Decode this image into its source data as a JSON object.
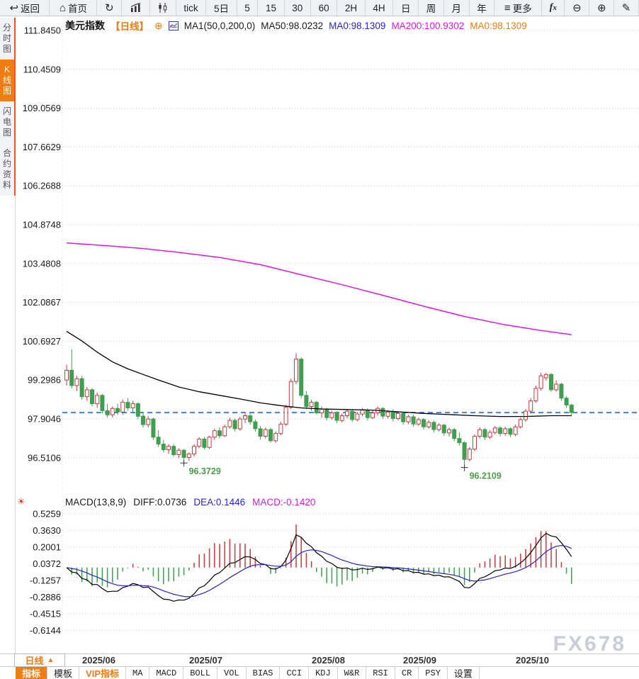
{
  "toolbar": {
    "items": [
      {
        "id": "back",
        "label": "返回",
        "icon": "back-arrow",
        "wide": true
      },
      {
        "id": "home",
        "label": "首页",
        "icon": "home",
        "wide": true
      },
      {
        "id": "refresh",
        "icon": "refresh"
      },
      {
        "id": "volume-bars",
        "icon": "bar-chart"
      },
      {
        "id": "candle-chart",
        "icon": "candlestick"
      },
      {
        "id": "tick",
        "label": "tick"
      },
      {
        "id": "5d",
        "label": "5日"
      },
      {
        "id": "m5",
        "label": "5"
      },
      {
        "id": "m15",
        "label": "15"
      },
      {
        "id": "m30",
        "label": "30"
      },
      {
        "id": "m60",
        "label": "60"
      },
      {
        "id": "h2",
        "label": "2H"
      },
      {
        "id": "h4",
        "label": "4H"
      },
      {
        "id": "day",
        "label": "日"
      },
      {
        "id": "week",
        "label": "周"
      },
      {
        "id": "month",
        "label": "月"
      },
      {
        "id": "year",
        "label": "年"
      },
      {
        "id": "more",
        "label": "更多",
        "icon": "menu",
        "wide": true
      },
      {
        "id": "fx",
        "icon": "fx"
      },
      {
        "id": "zoom-out",
        "icon": "zoom-out"
      },
      {
        "id": "zoom-in",
        "icon": "zoom-in"
      },
      {
        "id": "draw",
        "icon": "pencil"
      }
    ]
  },
  "sidebar": {
    "items": [
      {
        "id": "time-share",
        "label": "分时图",
        "active": false
      },
      {
        "id": "kline",
        "label": "K线图",
        "active": true
      },
      {
        "id": "lightning",
        "label": "闪电图",
        "active": false
      },
      {
        "id": "contract-info",
        "label": "合约资料",
        "active": false
      }
    ]
  },
  "chart_header": {
    "symbol": "美元指数",
    "period": "【日线】",
    "add_icon": "circle-plus",
    "legend_icon": "mini-chart",
    "ma1": "MA1(50,0,200,0)",
    "ma50": "MA50:98.0232",
    "ma0_blue": "MA0:98.1309",
    "ma200": "MA200:100.9302",
    "ma0_orange": "MA0:98.1309"
  },
  "macd_header": {
    "hot_icon": "sun",
    "title": "MACD(13,8,9)",
    "diff": "DIFF:0.0736",
    "dea": "DEA:0.1446",
    "macd": "MACD:-0.1420"
  },
  "bottom": {
    "period_button": "日线",
    "period_arrow": "▲",
    "tabs": [
      {
        "id": "indicator",
        "label": "指标",
        "style": "active"
      },
      {
        "id": "template",
        "label": "模板",
        "style": ""
      },
      {
        "id": "vip-indicator",
        "label": "VIP指标",
        "style": "vip"
      },
      {
        "id": "ma",
        "label": "MA",
        "style": "mono"
      },
      {
        "id": "macd",
        "label": "MACD",
        "style": "mono"
      },
      {
        "id": "boll",
        "label": "BOLL",
        "style": "mono"
      },
      {
        "id": "vol",
        "label": "VOL",
        "style": "mono"
      },
      {
        "id": "bias",
        "label": "BIAS",
        "style": "mono"
      },
      {
        "id": "cci",
        "label": "CCI",
        "style": "mono"
      },
      {
        "id": "kdj",
        "label": "KDJ",
        "style": "mono"
      },
      {
        "id": "wr",
        "label": "W&R",
        "style": "mono"
      },
      {
        "id": "rsi",
        "label": "RSI",
        "style": "mono"
      },
      {
        "id": "cr",
        "label": "CR",
        "style": "mono"
      },
      {
        "id": "psy",
        "label": "PSY",
        "style": "mono"
      },
      {
        "id": "settings",
        "label": "设置",
        "style": ""
      }
    ]
  },
  "watermark": "FX678",
  "colors": {
    "up": "#c43c3c",
    "down": "#3f9e4f",
    "ma50": "#000000",
    "ma200": "#e316e3",
    "price_line": "#1d6ee8",
    "accent": "#f07c14",
    "diff_line": "#000000",
    "dea_line": "#2824c8",
    "annotation": "#4a9e4a",
    "grid": "#cfd0d6"
  },
  "chart_data": {
    "type": "candlestick+macd",
    "title": "美元指数 日线 (US Dollar Index, Daily)",
    "candle_format": "[open,high,low,close]",
    "x_axis": {
      "labels": [
        "2025/06",
        "2025/07",
        "2025/08",
        "2025/09",
        "2025/10"
      ],
      "label_positions": [
        3,
        24,
        48,
        66,
        88
      ]
    },
    "y_axis_price": {
      "ticks": [
        111.845,
        110.4509,
        109.0569,
        107.6629,
        106.2688,
        104.8748,
        103.4808,
        102.0867,
        100.6927,
        99.2986,
        97.9046,
        96.5106
      ]
    },
    "y_axis_macd": {
      "ticks": [
        0.5259,
        0.363,
        0.2001,
        0.0372,
        -0.1257,
        -0.2886,
        -0.4515,
        -0.6144
      ]
    },
    "current_price": 98.1309,
    "macd_params": [
      13,
      8,
      9
    ],
    "annotations": [
      {
        "index": 23,
        "price": 96.3729,
        "label": "96.3729"
      },
      {
        "index": 78,
        "price": 96.2109,
        "label": "96.2109"
      }
    ],
    "ma200_points": [
      [
        0,
        104.22
      ],
      [
        8,
        104.12
      ],
      [
        15,
        104.02
      ],
      [
        22,
        103.88
      ],
      [
        30,
        103.7
      ],
      [
        38,
        103.44
      ],
      [
        46,
        103.08
      ],
      [
        54,
        102.72
      ],
      [
        62,
        102.34
      ],
      [
        70,
        101.95
      ],
      [
        78,
        101.58
      ],
      [
        86,
        101.28
      ],
      [
        93,
        101.08
      ],
      [
        99,
        100.93
      ]
    ],
    "ma50_points": [
      [
        0,
        101.05
      ],
      [
        3,
        100.7
      ],
      [
        6,
        100.3
      ],
      [
        9,
        99.95
      ],
      [
        12,
        99.7
      ],
      [
        15,
        99.5
      ],
      [
        18,
        99.3
      ],
      [
        22,
        99.05
      ],
      [
        26,
        98.88
      ],
      [
        30,
        98.75
      ],
      [
        34,
        98.62
      ],
      [
        38,
        98.48
      ],
      [
        42,
        98.38
      ],
      [
        46,
        98.3
      ],
      [
        50,
        98.26
      ],
      [
        55,
        98.24
      ],
      [
        60,
        98.22
      ],
      [
        65,
        98.16
      ],
      [
        70,
        98.1
      ],
      [
        75,
        98.06
      ],
      [
        80,
        98.02
      ],
      [
        85,
        97.99
      ],
      [
        90,
        97.99
      ],
      [
        95,
        98.02
      ],
      [
        99,
        98.02
      ]
    ],
    "candles": [
      [
        99.3,
        99.85,
        99.1,
        99.65
      ],
      [
        99.65,
        100.4,
        99.0,
        99.1
      ],
      [
        99.1,
        99.45,
        98.9,
        99.35
      ],
      [
        99.35,
        99.45,
        98.6,
        98.7
      ],
      [
        98.7,
        99.05,
        98.55,
        98.95
      ],
      [
        98.95,
        99.0,
        98.35,
        98.45
      ],
      [
        98.45,
        98.85,
        98.3,
        98.75
      ],
      [
        98.75,
        98.8,
        98.1,
        98.2
      ],
      [
        98.2,
        98.45,
        97.95,
        98.05
      ],
      [
        98.05,
        98.35,
        97.95,
        98.28
      ],
      [
        98.28,
        98.45,
        98.05,
        98.15
      ],
      [
        98.15,
        98.6,
        98.05,
        98.5
      ],
      [
        98.5,
        98.65,
        98.2,
        98.3
      ],
      [
        98.3,
        98.55,
        98.15,
        98.45
      ],
      [
        98.45,
        98.5,
        97.9,
        98.0
      ],
      [
        98.0,
        98.15,
        97.6,
        97.7
      ],
      [
        97.7,
        98.0,
        97.6,
        97.9
      ],
      [
        97.9,
        97.95,
        97.15,
        97.25
      ],
      [
        97.25,
        97.5,
        96.9,
        97.0
      ],
      [
        97.0,
        97.15,
        96.7,
        96.8
      ],
      [
        96.8,
        97.0,
        96.65,
        96.92
      ],
      [
        96.92,
        97.0,
        96.55,
        96.62
      ],
      [
        96.62,
        96.85,
        96.5,
        96.78
      ],
      [
        96.78,
        96.82,
        96.3729,
        96.52
      ],
      [
        96.52,
        96.7,
        96.4,
        96.65
      ],
      [
        96.65,
        97.0,
        96.55,
        96.92
      ],
      [
        96.92,
        97.25,
        96.85,
        97.18
      ],
      [
        97.18,
        97.25,
        96.8,
        96.88
      ],
      [
        96.88,
        97.3,
        96.82,
        97.25
      ],
      [
        97.25,
        97.55,
        97.15,
        97.48
      ],
      [
        97.48,
        97.6,
        97.2,
        97.3
      ],
      [
        97.3,
        97.7,
        97.25,
        97.62
      ],
      [
        97.62,
        97.95,
        97.55,
        97.85
      ],
      [
        97.85,
        97.92,
        97.45,
        97.55
      ],
      [
        97.55,
        97.98,
        97.48,
        97.9
      ],
      [
        97.9,
        98.1,
        97.75,
        98.02
      ],
      [
        98.02,
        98.12,
        97.7,
        97.8
      ],
      [
        97.8,
        97.88,
        97.45,
        97.55
      ],
      [
        97.55,
        97.65,
        97.15,
        97.28
      ],
      [
        97.28,
        97.6,
        97.2,
        97.52
      ],
      [
        97.52,
        97.58,
        97.05,
        97.12
      ],
      [
        97.12,
        97.45,
        97.05,
        97.38
      ],
      [
        97.38,
        97.8,
        97.32,
        97.72
      ],
      [
        97.72,
        98.4,
        97.65,
        98.32
      ],
      [
        98.32,
        99.35,
        98.25,
        99.25
      ],
      [
        99.25,
        100.26,
        99.15,
        100.05
      ],
      [
        100.05,
        100.12,
        98.65,
        98.75
      ],
      [
        98.75,
        98.9,
        98.25,
        98.35
      ],
      [
        98.35,
        98.6,
        98.2,
        98.5
      ],
      [
        98.5,
        98.55,
        98.05,
        98.12
      ],
      [
        98.12,
        98.35,
        97.95,
        98.25
      ],
      [
        98.25,
        98.3,
        97.85,
        97.95
      ],
      [
        97.95,
        98.2,
        97.88,
        98.12
      ],
      [
        98.12,
        98.18,
        97.75,
        97.85
      ],
      [
        97.85,
        98.1,
        97.78,
        98.02
      ],
      [
        98.02,
        98.25,
        97.92,
        98.18
      ],
      [
        98.18,
        98.22,
        97.8,
        97.88
      ],
      [
        97.88,
        98.15,
        97.82,
        98.08
      ],
      [
        98.08,
        98.3,
        98.0,
        98.22
      ],
      [
        98.22,
        98.28,
        97.85,
        97.95
      ],
      [
        97.95,
        98.2,
        97.9,
        98.12
      ],
      [
        98.12,
        98.35,
        98.02,
        98.28
      ],
      [
        98.28,
        98.32,
        97.9,
        98.0
      ],
      [
        98.0,
        98.22,
        97.92,
        98.15
      ],
      [
        98.15,
        98.25,
        97.82,
        97.92
      ],
      [
        97.92,
        98.18,
        97.85,
        98.1
      ],
      [
        98.1,
        98.15,
        97.7,
        97.8
      ],
      [
        97.8,
        98.05,
        97.72,
        97.98
      ],
      [
        97.98,
        98.06,
        97.62,
        97.72
      ],
      [
        97.72,
        97.95,
        97.65,
        97.88
      ],
      [
        97.88,
        97.94,
        97.52,
        97.62
      ],
      [
        97.62,
        97.85,
        97.55,
        97.78
      ],
      [
        97.78,
        97.84,
        97.42,
        97.52
      ],
      [
        97.52,
        97.75,
        97.45,
        97.68
      ],
      [
        97.68,
        97.73,
        97.3,
        97.4
      ],
      [
        97.4,
        97.6,
        97.28,
        97.52
      ],
      [
        97.52,
        97.58,
        97.1,
        97.2
      ],
      [
        97.2,
        97.42,
        96.95,
        97.05
      ],
      [
        97.05,
        97.1,
        96.2109,
        96.45
      ],
      [
        96.45,
        96.9,
        96.38,
        96.82
      ],
      [
        96.82,
        97.35,
        96.75,
        97.28
      ],
      [
        97.28,
        97.6,
        97.2,
        97.52
      ],
      [
        97.52,
        97.58,
        97.15,
        97.25
      ],
      [
        97.25,
        97.5,
        97.18,
        97.42
      ],
      [
        97.42,
        97.65,
        97.35,
        97.58
      ],
      [
        97.58,
        97.64,
        97.28,
        97.38
      ],
      [
        97.38,
        97.62,
        97.3,
        97.55
      ],
      [
        97.55,
        97.6,
        97.25,
        97.35
      ],
      [
        97.35,
        97.7,
        97.28,
        97.62
      ],
      [
        97.62,
        97.95,
        97.55,
        97.88
      ],
      [
        97.88,
        98.25,
        97.8,
        98.18
      ],
      [
        98.18,
        98.65,
        98.1,
        98.55
      ],
      [
        98.55,
        99.1,
        98.48,
        99.0
      ],
      [
        99.0,
        99.56,
        98.92,
        99.45
      ],
      [
        99.38,
        99.55,
        99.28,
        99.5
      ],
      [
        99.5,
        99.55,
        98.88,
        98.95
      ],
      [
        98.95,
        99.28,
        98.88,
        99.15
      ],
      [
        99.15,
        99.2,
        98.55,
        98.65
      ],
      [
        98.65,
        98.72,
        98.3,
        98.4
      ],
      [
        98.4,
        98.45,
        98.02,
        98.13
      ]
    ]
  }
}
